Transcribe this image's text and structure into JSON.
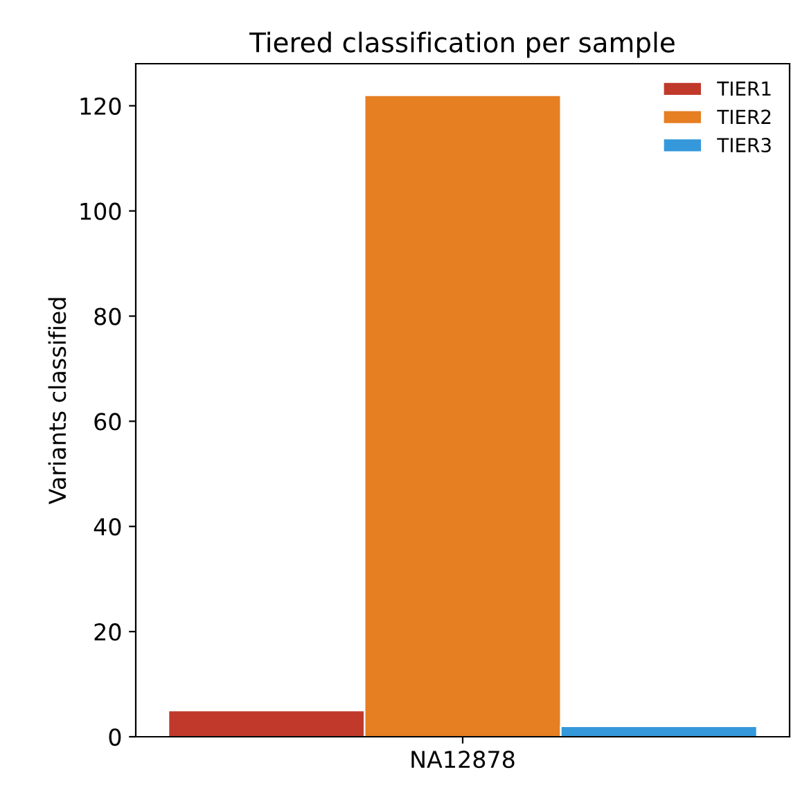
{
  "chart_data": {
    "type": "bar",
    "title": "Tiered classification per sample",
    "ylabel": "Variants classified",
    "categories": [
      "NA12878"
    ],
    "series": [
      {
        "name": "TIER1",
        "color": "#c0392b",
        "values": [
          5
        ]
      },
      {
        "name": "TIER2",
        "color": "#e67e22",
        "values": [
          122
        ]
      },
      {
        "name": "TIER3",
        "color": "#3498db",
        "values": [
          2
        ]
      }
    ],
    "ylim": [
      0,
      128
    ],
    "yticks": [
      0,
      20,
      40,
      60,
      80,
      100,
      120
    ],
    "legend": "top right",
    "grid": false
  }
}
